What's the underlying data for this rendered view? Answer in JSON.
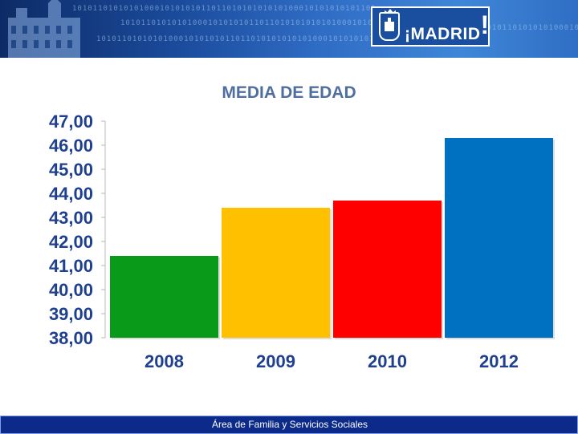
{
  "header": {
    "binary_text": "10101101010101000101010101101101010101010100010101010101101",
    "logo_text_prefix": "¡",
    "logo_text": "MADRID",
    "logo_text_suffix": "!"
  },
  "colors": {
    "green": "#0a9a1a",
    "yellow": "#ffc000",
    "red": "#ff0000",
    "blue": "#0070c0",
    "title": "#4f6f9e",
    "axis_text": "#1f3f8f"
  },
  "chart_data": {
    "type": "bar",
    "title": "MEDIA DE EDAD",
    "categories": [
      "2008",
      "2009",
      "2010",
      "2012"
    ],
    "values": [
      41.4,
      43.4,
      43.7,
      46.3
    ],
    "bar_colors": [
      "#0a9a1a",
      "#ffc000",
      "#ff0000",
      "#0070c0"
    ],
    "ylim": [
      38,
      47
    ],
    "yticks": [
      "47,00",
      "46,00",
      "45,00",
      "44,00",
      "43,00",
      "42,00",
      "41,00",
      "40,00",
      "39,00",
      "38,00"
    ],
    "xlabel": "",
    "ylabel": "",
    "grid": false
  },
  "footer": {
    "text": "Área de Familia y Servicios Sociales"
  }
}
